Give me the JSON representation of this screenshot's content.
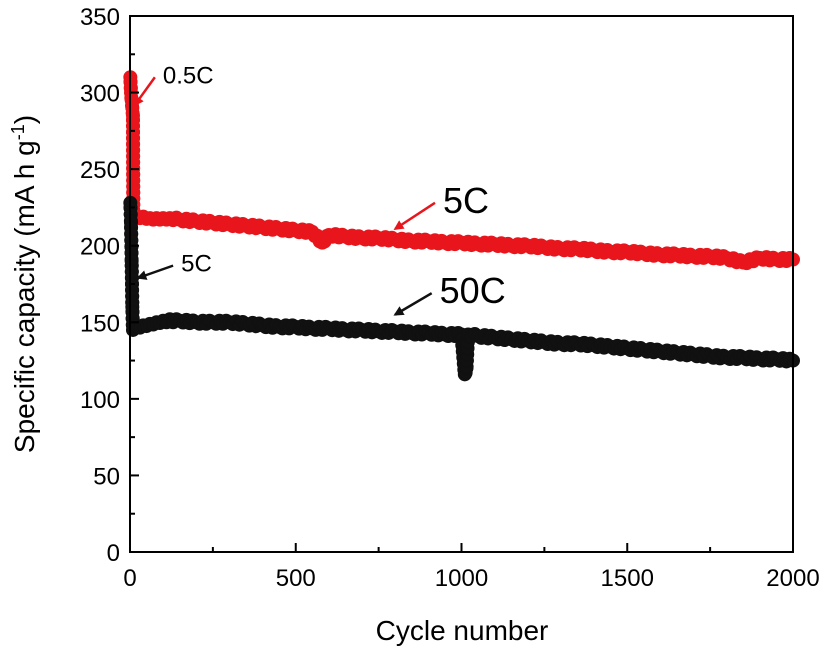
{
  "chart_data": {
    "type": "scatter",
    "title": "",
    "xlabel": "Cycle number",
    "ylabel": "Specific capacity (mA h g",
    "ylabel_sup": "-1",
    "ylabel_close": ")",
    "xlim": [
      0,
      2000
    ],
    "ylim": [
      0,
      350
    ],
    "x_ticks": [
      0,
      500,
      1000,
      1500,
      2000
    ],
    "x_tick_labels": [
      "0",
      "500",
      "1000",
      "1500",
      "2000"
    ],
    "y_ticks": [
      0,
      50,
      100,
      150,
      200,
      250,
      300,
      350
    ],
    "y_tick_labels": [
      "0",
      "50",
      "100",
      "150",
      "200",
      "250",
      "300",
      "350"
    ],
    "grid": false,
    "series": [
      {
        "color": "#e8161c",
        "x": [
          1,
          3,
          5,
          7,
          9,
          10,
          20,
          40,
          60,
          80,
          100,
          120,
          150,
          200,
          250,
          300,
          350,
          400,
          450,
          500,
          550,
          580,
          600,
          650,
          700,
          750,
          800,
          850,
          900,
          950,
          1000,
          1050,
          1100,
          1150,
          1200,
          1250,
          1300,
          1350,
          1400,
          1450,
          1500,
          1550,
          1600,
          1650,
          1700,
          1750,
          1800,
          1850,
          1900,
          1950,
          2000
        ],
        "y": [
          310,
          300,
          295,
          290,
          285,
          220,
          219,
          219,
          218,
          218,
          218,
          218,
          217,
          216,
          215,
          214,
          213,
          212,
          211,
          210,
          209,
          202,
          207,
          206,
          205,
          205,
          204,
          203,
          203,
          202,
          202,
          201,
          201,
          200,
          200,
          199,
          198,
          198,
          197,
          196,
          196,
          195,
          194,
          194,
          193,
          193,
          192,
          189,
          192,
          191,
          191
        ]
      },
      {
        "color": "#111111",
        "x": [
          1,
          3,
          5,
          7,
          9,
          11,
          13,
          20,
          40,
          60,
          80,
          100,
          150,
          200,
          250,
          300,
          350,
          400,
          450,
          500,
          550,
          600,
          650,
          700,
          750,
          800,
          850,
          900,
          950,
          1000,
          1010,
          1015,
          1020,
          1050,
          1100,
          1150,
          1200,
          1250,
          1300,
          1350,
          1400,
          1450,
          1500,
          1550,
          1600,
          1650,
          1700,
          1750,
          1800,
          1850,
          1900,
          1950,
          2000
        ],
        "y": [
          228,
          215,
          190,
          160,
          145,
          146,
          147,
          147,
          148,
          149,
          150,
          151,
          151,
          150,
          150,
          150,
          149,
          148,
          147,
          147,
          146,
          146,
          145,
          145,
          144,
          144,
          143,
          143,
          142,
          142,
          116,
          120,
          142,
          141,
          140,
          139,
          138,
          137,
          136,
          136,
          135,
          134,
          133,
          132,
          131,
          130,
          129,
          128,
          127,
          127,
          126,
          126,
          125
        ]
      }
    ],
    "annotations": [
      {
        "text": "0.5C",
        "color": "#e8161c",
        "from": [
          75,
          310
        ],
        "to": [
          15,
          292
        ]
      },
      {
        "text": "5C",
        "color": "#e8161c",
        "from": [
          920,
          228
        ],
        "to": [
          800,
          211
        ]
      },
      {
        "text": "5C",
        "color": "#111111",
        "from": [
          130,
          187
        ],
        "to": [
          25,
          179
        ]
      },
      {
        "text": "50C",
        "color": "#111111",
        "from": [
          910,
          169
        ],
        "to": [
          800,
          155
        ]
      }
    ]
  }
}
